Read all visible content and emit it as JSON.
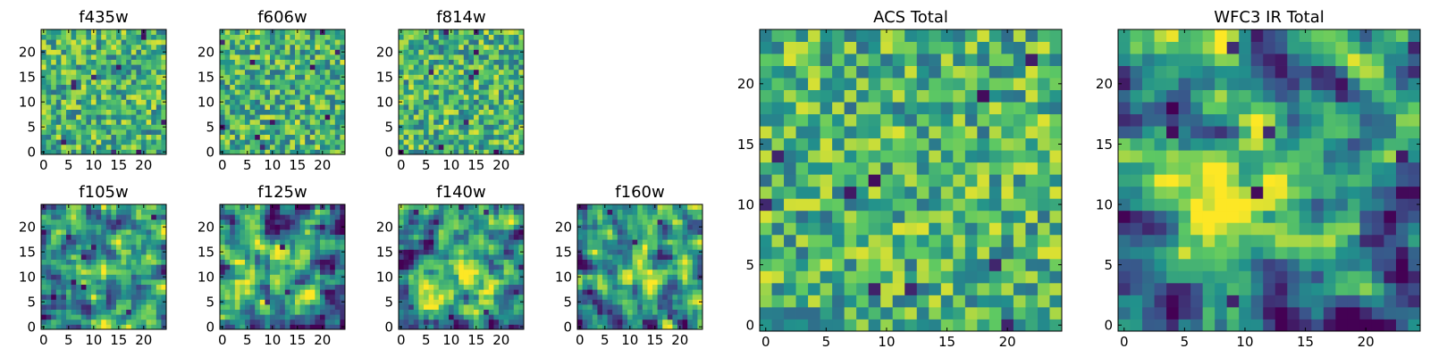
{
  "figure": {
    "colormap": "viridis",
    "colormap_stops": [
      "#440154",
      "#3b528b",
      "#21918c",
      "#5ec962",
      "#fde725"
    ]
  },
  "chart_data": [
    {
      "type": "heatmap",
      "title": "f435w",
      "shape": [
        25,
        25
      ],
      "xlim": [
        -0.5,
        24.5
      ],
      "ylim": [
        -0.5,
        24.5
      ],
      "xticks": [
        0,
        5,
        10,
        15,
        20
      ],
      "yticks": [
        0,
        5,
        10,
        15,
        20
      ],
      "texture": "fine-noise",
      "seed": 11,
      "blobs": []
    },
    {
      "type": "heatmap",
      "title": "f606w",
      "shape": [
        25,
        25
      ],
      "xlim": [
        -0.5,
        24.5
      ],
      "ylim": [
        -0.5,
        24.5
      ],
      "xticks": [
        0,
        5,
        10,
        15,
        20
      ],
      "yticks": [
        0,
        5,
        10,
        15,
        20
      ],
      "texture": "fine-noise",
      "seed": 23,
      "blobs": []
    },
    {
      "type": "heatmap",
      "title": "f814w",
      "shape": [
        25,
        25
      ],
      "xlim": [
        -0.5,
        24.5
      ],
      "ylim": [
        -0.5,
        24.5
      ],
      "xticks": [
        0,
        5,
        10,
        15,
        20
      ],
      "yticks": [
        0,
        5,
        10,
        15,
        20
      ],
      "texture": "fine-noise",
      "seed": 37,
      "blobs": []
    },
    {
      "type": "heatmap",
      "title": "f105w",
      "shape": [
        25,
        25
      ],
      "xlim": [
        -0.5,
        24.5
      ],
      "ylim": [
        -0.5,
        24.5
      ],
      "xticks": [
        0,
        5,
        10,
        15,
        20
      ],
      "yticks": [
        0,
        5,
        10,
        15,
        20
      ],
      "texture": "smooth-noise",
      "seed": 41,
      "blobs": [
        [
          14,
          11,
          3.5,
          0.25
        ]
      ]
    },
    {
      "type": "heatmap",
      "title": "f125w",
      "shape": [
        25,
        25
      ],
      "xlim": [
        -0.5,
        24.5
      ],
      "ylim": [
        -0.5,
        24.5
      ],
      "xticks": [
        0,
        5,
        10,
        15,
        20
      ],
      "yticks": [
        0,
        5,
        10,
        15,
        20
      ],
      "texture": "smooth-noise",
      "seed": 53,
      "blobs": [
        [
          13,
          11,
          3.5,
          0.2
        ]
      ]
    },
    {
      "type": "heatmap",
      "title": "f140w",
      "shape": [
        25,
        25
      ],
      "xlim": [
        -0.5,
        24.5
      ],
      "ylim": [
        -0.5,
        24.5
      ],
      "xticks": [
        0,
        5,
        10,
        15,
        20
      ],
      "yticks": [
        0,
        5,
        10,
        15,
        20
      ],
      "texture": "smooth-noise",
      "seed": 67,
      "blobs": [
        [
          12,
          11,
          5.0,
          0.3
        ]
      ]
    },
    {
      "type": "heatmap",
      "title": "f160w",
      "shape": [
        25,
        25
      ],
      "xlim": [
        -0.5,
        24.5
      ],
      "ylim": [
        -0.5,
        24.5
      ],
      "xticks": [
        0,
        5,
        10,
        15,
        20
      ],
      "yticks": [
        0,
        5,
        10,
        15,
        20
      ],
      "texture": "smooth-noise",
      "seed": 79,
      "blobs": [
        [
          12,
          11,
          4.0,
          0.35
        ]
      ]
    },
    {
      "type": "heatmap",
      "title": "ACS Total",
      "shape": [
        25,
        25
      ],
      "xlim": [
        -0.5,
        24.5
      ],
      "ylim": [
        -0.5,
        24.5
      ],
      "xticks": [
        0,
        5,
        10,
        15,
        20
      ],
      "yticks": [
        0,
        5,
        10,
        15,
        20
      ],
      "texture": "fine-noise",
      "seed": 97,
      "blobs": []
    },
    {
      "type": "heatmap",
      "title": "WFC3 IR Total",
      "shape": [
        25,
        25
      ],
      "xlim": [
        -0.5,
        24.5
      ],
      "ylim": [
        -0.5,
        24.5
      ],
      "xticks": [
        0,
        5,
        10,
        15,
        20
      ],
      "yticks": [
        0,
        5,
        10,
        15,
        20
      ],
      "texture": "smooth-noise",
      "seed": 101,
      "blobs": [
        [
          12,
          11,
          3.5,
          0.5
        ],
        [
          1.5,
          23,
          1.5,
          0.35
        ],
        [
          5,
          2,
          2,
          -0.45
        ],
        [
          18,
          1,
          2,
          -0.4
        ],
        [
          23,
          4,
          1.5,
          -0.35
        ]
      ]
    }
  ]
}
